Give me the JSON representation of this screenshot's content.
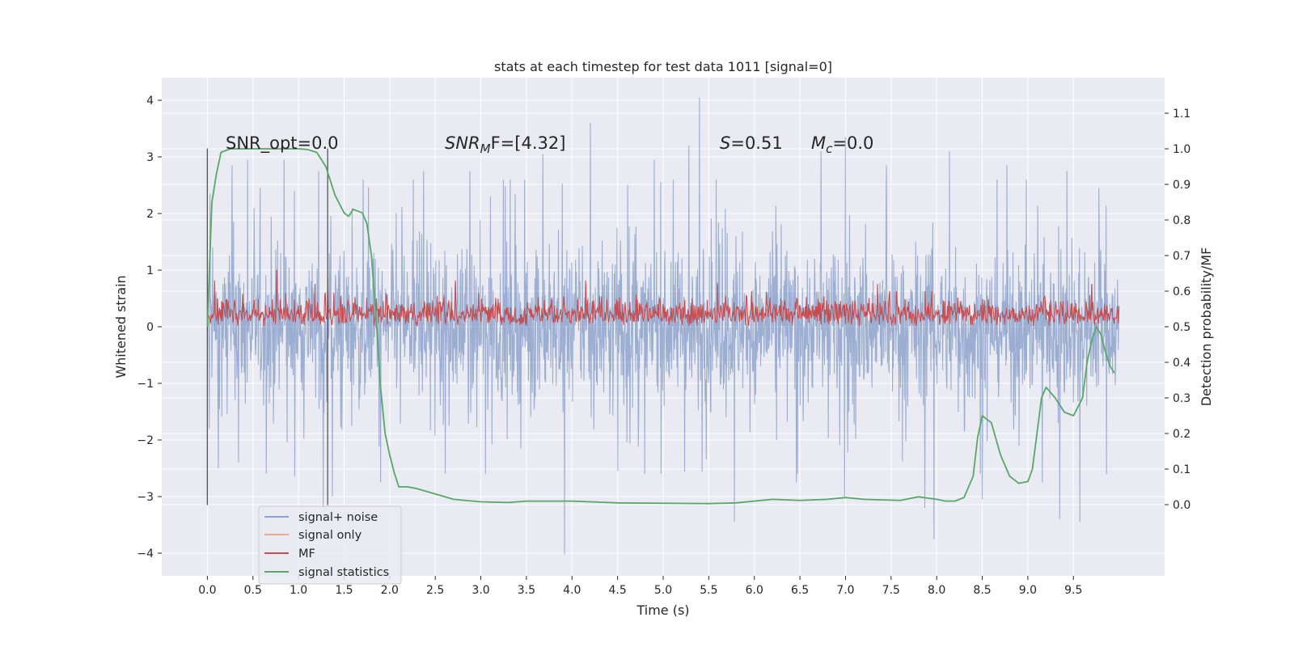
{
  "chart_data": {
    "type": "line",
    "title": "stats at each timestep for test data 1011 [signal=0]",
    "xlabel": "Time (s)",
    "ylabel_left": "Whitened strain",
    "ylabel_right": "Detection probability/MF",
    "xlim": [
      -0.5,
      10.5
    ],
    "ylim_left": [
      -4.4,
      4.4
    ],
    "ylim_right": [
      -0.2,
      1.2
    ],
    "xticks": [
      0.0,
      0.5,
      1.0,
      1.5,
      2.0,
      2.5,
      3.0,
      3.5,
      4.0,
      4.5,
      5.0,
      5.5,
      6.0,
      6.5,
      7.0,
      7.5,
      8.0,
      8.5,
      9.0,
      9.5
    ],
    "xtick_labels": [
      "0.0",
      "0.5",
      "1.0",
      "1.5",
      "2.0",
      "2.5",
      "3.0",
      "3.5",
      "4.0",
      "4.5",
      "5.0",
      "5.5",
      "6.0",
      "6.5",
      "7.0",
      "7.5",
      "8.0",
      "8.5",
      "9.0",
      "9.5"
    ],
    "yticks_left": [
      -4,
      -3,
      -2,
      -1,
      0,
      1,
      2,
      3,
      4
    ],
    "ytick_labels_left": [
      "−4",
      "−3",
      "−2",
      "−1",
      "0",
      "1",
      "2",
      "3",
      "4"
    ],
    "yticks_right": [
      0.0,
      0.1,
      0.2,
      0.3,
      0.4,
      0.5,
      0.6,
      0.7,
      0.8,
      0.9,
      1.0,
      1.1
    ],
    "ytick_labels_right": [
      "0.0",
      "0.1",
      "0.2",
      "0.3",
      "0.4",
      "0.5",
      "0.6",
      "0.7",
      "0.8",
      "0.9",
      "1.0",
      "1.1"
    ],
    "grid": true,
    "legend_placement": "lower-left",
    "colors": {
      "background": "#eaeaf2",
      "grid": "#ffffff",
      "signal_noise": "#4c72b0",
      "signal_only": "#dd8452",
      "mf": "#c44e52",
      "signal_statistics": "#55a868",
      "vline": "#555555"
    },
    "series": [
      {
        "name": "signal+ noise",
        "axis": "left",
        "representation": "dense noise trace about 0 on 0.0–10.0 s, amplitude mostly within ±1.5",
        "x_range": [
          0.0,
          10.0
        ],
        "peaks": [
          {
            "x": 0.03,
            "y": 2.35
          },
          {
            "x": 0.27,
            "y": 2.85
          },
          {
            "x": 0.44,
            "y": 2.95
          },
          {
            "x": 0.84,
            "y": 2.95
          },
          {
            "x": 1.22,
            "y": 2.75
          },
          {
            "x": 2.37,
            "y": 2.75
          },
          {
            "x": 2.88,
            "y": 2.75
          },
          {
            "x": 3.68,
            "y": 3.05
          },
          {
            "x": 4.2,
            "y": 3.6
          },
          {
            "x": 4.9,
            "y": 2.95
          },
          {
            "x": 5.28,
            "y": 3.2
          },
          {
            "x": 5.4,
            "y": 4.05
          },
          {
            "x": 5.78,
            "y": 3.35
          },
          {
            "x": 6.73,
            "y": 3.1
          },
          {
            "x": 7.0,
            "y": 3.35
          },
          {
            "x": 7.45,
            "y": 2.85
          },
          {
            "x": 8.14,
            "y": 3.1
          },
          {
            "x": 8.77,
            "y": 2.85
          },
          {
            "x": 9.43,
            "y": 2.75
          },
          {
            "x": 9.78,
            "y": 2.45
          }
        ],
        "troughs": [
          {
            "x": 0.02,
            "y": -1.8
          },
          {
            "x": 0.12,
            "y": -2.5
          },
          {
            "x": 0.34,
            "y": -2.4
          },
          {
            "x": 0.96,
            "y": -2.65
          },
          {
            "x": 1.27,
            "y": -3.2
          },
          {
            "x": 1.37,
            "y": -3.0
          },
          {
            "x": 1.9,
            "y": -2.75
          },
          {
            "x": 2.61,
            "y": -2.6
          },
          {
            "x": 3.05,
            "y": -2.6
          },
          {
            "x": 3.92,
            "y": -4.02
          },
          {
            "x": 4.5,
            "y": -2.55
          },
          {
            "x": 5.78,
            "y": -3.45
          },
          {
            "x": 6.46,
            "y": -2.75
          },
          {
            "x": 6.99,
            "y": -3.0
          },
          {
            "x": 7.87,
            "y": -3.2
          },
          {
            "x": 7.97,
            "y": -3.75
          },
          {
            "x": 8.5,
            "y": -3.05
          },
          {
            "x": 9.16,
            "y": -2.75
          },
          {
            "x": 9.35,
            "y": -3.4
          },
          {
            "x": 9.57,
            "y": -3.45
          }
        ]
      },
      {
        "name": "signal only",
        "axis": "left",
        "representation": "zero signal (not visible)",
        "x": [
          0.0,
          10.0
        ],
        "y": [
          0.0,
          0.0
        ]
      },
      {
        "name": "MF",
        "axis": "right",
        "representation": "noisy trace between 0.50 and about 0.62 on 0.0–10.0 s",
        "x_range": [
          0.0,
          10.0
        ],
        "baseline": 0.5,
        "typical_max": 0.6,
        "peaks": [
          {
            "x": 0.08,
            "y": 0.63
          },
          {
            "x": 0.76,
            "y": 0.66
          },
          {
            "x": 1.18,
            "y": 0.62
          },
          {
            "x": 1.32,
            "y": 0.64
          },
          {
            "x": 2.72,
            "y": 0.63
          },
          {
            "x": 4.15,
            "y": 0.63
          },
          {
            "x": 5.6,
            "y": 0.62
          },
          {
            "x": 7.35,
            "y": 0.62
          },
          {
            "x": 9.7,
            "y": 0.62
          }
        ]
      },
      {
        "name": "signal statistics",
        "axis": "right",
        "x": [
          0.0,
          0.05,
          0.1,
          0.15,
          0.25,
          0.4,
          0.6,
          0.8,
          1.0,
          1.1,
          1.2,
          1.3,
          1.4,
          1.5,
          1.55,
          1.6,
          1.7,
          1.75,
          1.8,
          1.85,
          1.9,
          1.95,
          2.0,
          2.05,
          2.1,
          2.2,
          2.3,
          2.5,
          2.7,
          3.0,
          3.3,
          3.5,
          3.8,
          4.0,
          4.5,
          5.0,
          5.5,
          5.8,
          6.0,
          6.2,
          6.5,
          6.8,
          7.0,
          7.2,
          7.6,
          7.8,
          8.0,
          8.1,
          8.2,
          8.3,
          8.4,
          8.45,
          8.5,
          8.6,
          8.7,
          8.8,
          8.9,
          9.0,
          9.05,
          9.1,
          9.15,
          9.2,
          9.3,
          9.4,
          9.5,
          9.6,
          9.65,
          9.7,
          9.75,
          9.8,
          9.85,
          9.9,
          9.95
        ],
        "y": [
          0.5,
          0.85,
          0.93,
          0.99,
          1.0,
          1.0,
          1.0,
          1.0,
          1.0,
          0.998,
          0.99,
          0.95,
          0.87,
          0.82,
          0.81,
          0.83,
          0.82,
          0.79,
          0.7,
          0.53,
          0.33,
          0.2,
          0.14,
          0.09,
          0.05,
          0.05,
          0.045,
          0.03,
          0.015,
          0.008,
          0.006,
          0.01,
          0.01,
          0.01,
          0.005,
          0.004,
          0.003,
          0.005,
          0.01,
          0.015,
          0.012,
          0.015,
          0.02,
          0.015,
          0.012,
          0.022,
          0.015,
          0.01,
          0.01,
          0.02,
          0.08,
          0.19,
          0.25,
          0.23,
          0.14,
          0.08,
          0.06,
          0.065,
          0.1,
          0.2,
          0.3,
          0.33,
          0.3,
          0.26,
          0.25,
          0.3,
          0.4,
          0.46,
          0.5,
          0.48,
          0.43,
          0.39,
          0.37
        ]
      }
    ],
    "vertical_lines": [
      {
        "x": 0.0,
        "y_range": [
          -3.15,
          3.15
        ]
      },
      {
        "x": 1.32,
        "y_range": [
          -3.15,
          3.15
        ]
      }
    ],
    "annotations": [
      {
        "id": "snr_opt",
        "text": "SNR_opt=0.0"
      },
      {
        "id": "snr_mf",
        "text_main": "SNR",
        "text_sub": "M",
        "text_tail": "F=[4.32]"
      },
      {
        "id": "s_val",
        "text_main": "S",
        "text_tail": "=0.51"
      },
      {
        "id": "mc_val",
        "text_main": "M",
        "text_sub": "c",
        "text_tail": "=0.0"
      }
    ]
  }
}
